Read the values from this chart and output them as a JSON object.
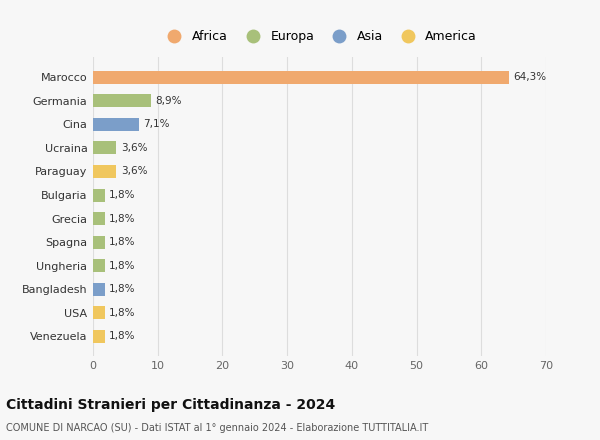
{
  "categories": [
    "Marocco",
    "Germania",
    "Cina",
    "Ucraina",
    "Paraguay",
    "Bulgaria",
    "Grecia",
    "Spagna",
    "Ungheria",
    "Bangladesh",
    "USA",
    "Venezuela"
  ],
  "values": [
    64.3,
    8.9,
    7.1,
    3.6,
    3.6,
    1.8,
    1.8,
    1.8,
    1.8,
    1.8,
    1.8,
    1.8
  ],
  "labels": [
    "64,3%",
    "8,9%",
    "7,1%",
    "3,6%",
    "3,6%",
    "1,8%",
    "1,8%",
    "1,8%",
    "1,8%",
    "1,8%",
    "1,8%",
    "1,8%"
  ],
  "colors": [
    "#f0a96e",
    "#a8c07a",
    "#7b9ec9",
    "#a8c07a",
    "#f0c75e",
    "#a8c07a",
    "#a8c07a",
    "#a8c07a",
    "#a8c07a",
    "#7b9ec9",
    "#f0c75e",
    "#f0c75e"
  ],
  "legend_labels": [
    "Africa",
    "Europa",
    "Asia",
    "America"
  ],
  "legend_colors": [
    "#f0a96e",
    "#a8c07a",
    "#7b9ec9",
    "#f0c75e"
  ],
  "title": "Cittadini Stranieri per Cittadinanza - 2024",
  "subtitle": "COMUNE DI NARCAO (SU) - Dati ISTAT al 1° gennaio 2024 - Elaborazione TUTTITALIA.IT",
  "xlim": [
    0,
    70
  ],
  "xticks": [
    0,
    10,
    20,
    30,
    40,
    50,
    60,
    70
  ],
  "bg_color": "#f7f7f7",
  "grid_color": "#dddddd",
  "bar_height": 0.55
}
